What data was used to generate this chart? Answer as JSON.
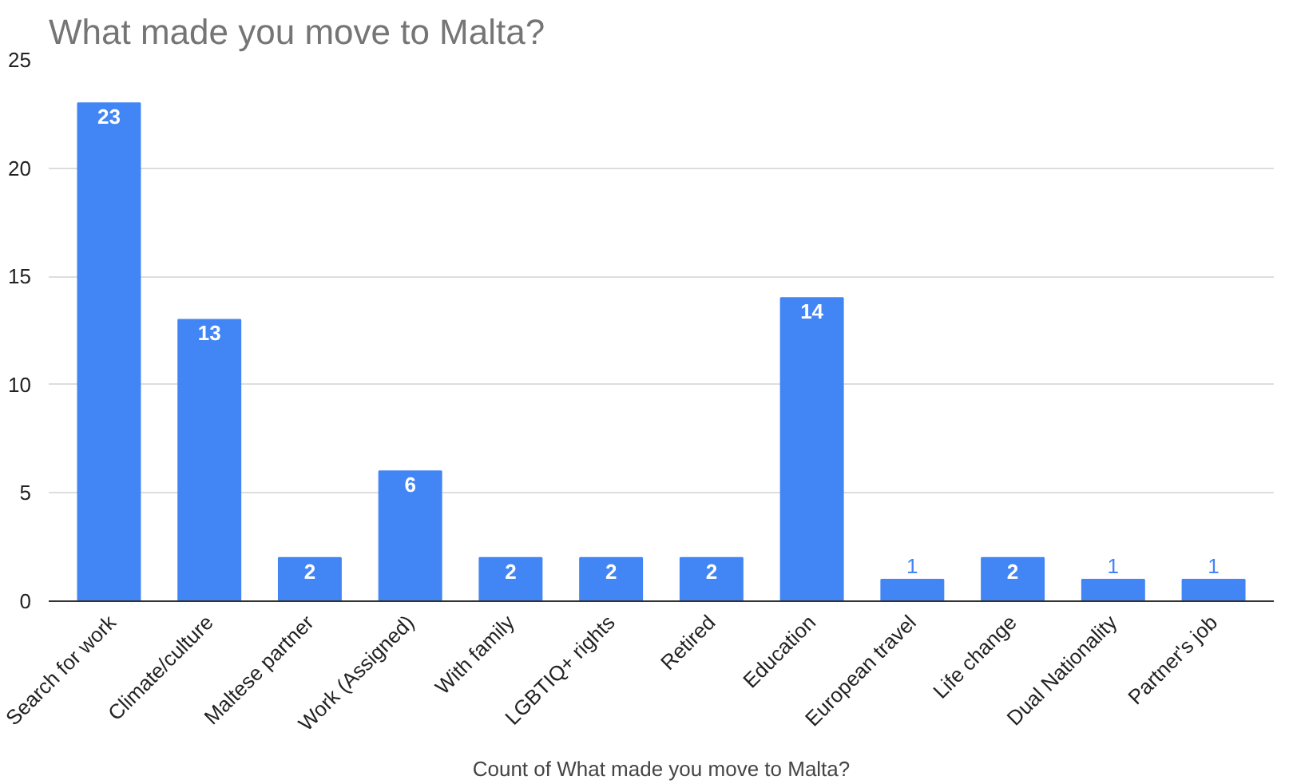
{
  "chart_data": {
    "type": "bar",
    "title": "What made you move to Malta?",
    "xlabel": "Count of What made you move to Malta?",
    "categories": [
      "Search for work",
      "Climate/culture",
      "Maltese partner",
      "Work (Assigned)",
      "With family",
      "LGBTIQ+ rights",
      "Retired",
      "Education",
      "European travel",
      "Life change",
      "Dual Nationality",
      "Partner's job"
    ],
    "values": [
      23,
      13,
      2,
      6,
      2,
      2,
      2,
      14,
      1,
      2,
      1,
      1
    ],
    "color": "#4285f4",
    "ylim": [
      0,
      25
    ],
    "yticks": [
      0,
      5,
      10,
      15,
      20,
      25
    ],
    "grid": "y",
    "data_labels": true
  }
}
